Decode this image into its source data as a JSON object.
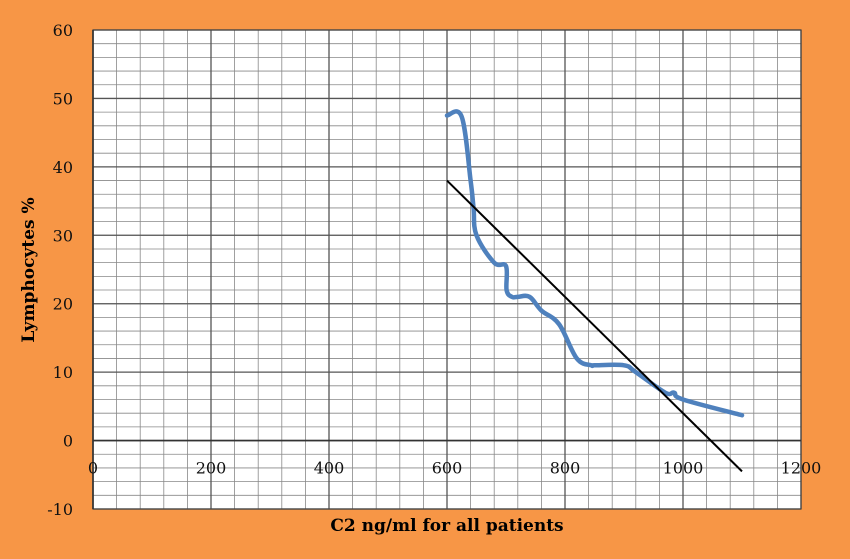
{
  "chart_data": {
    "type": "line",
    "title": "",
    "xlabel": "C2 ng/ml for all patients",
    "ylabel": "Lymphocytes %",
    "xlim": [
      0,
      1200
    ],
    "ylim": [
      -10,
      60
    ],
    "x_ticks": [
      0,
      200,
      400,
      600,
      800,
      1000,
      1200
    ],
    "y_ticks": [
      -10,
      0,
      10,
      20,
      30,
      40,
      50,
      60
    ],
    "grid": true,
    "legend": "none",
    "colors": {
      "background": "#F79646",
      "plot_area": "#FFFFFF",
      "series_line": "#4F81BD",
      "trendline": "#000000",
      "grid": "#888888"
    },
    "series": [
      {
        "kind": "data",
        "x": [
          600,
          625,
          640,
          645,
          650,
          680,
          700,
          701,
          710,
          720,
          740,
          760,
          790,
          820,
          845,
          850,
          900,
          920,
          970,
          985,
          1000,
          1100
        ],
        "y": [
          47.5,
          47.3,
          38,
          34,
          30,
          26,
          25.5,
          22,
          21,
          21,
          21,
          19,
          17,
          12,
          11,
          11,
          11,
          10,
          7,
          7,
          6,
          3.7
        ]
      },
      {
        "kind": "trendline",
        "x": [
          600,
          1100
        ],
        "y": [
          38,
          -4.5
        ]
      }
    ]
  }
}
